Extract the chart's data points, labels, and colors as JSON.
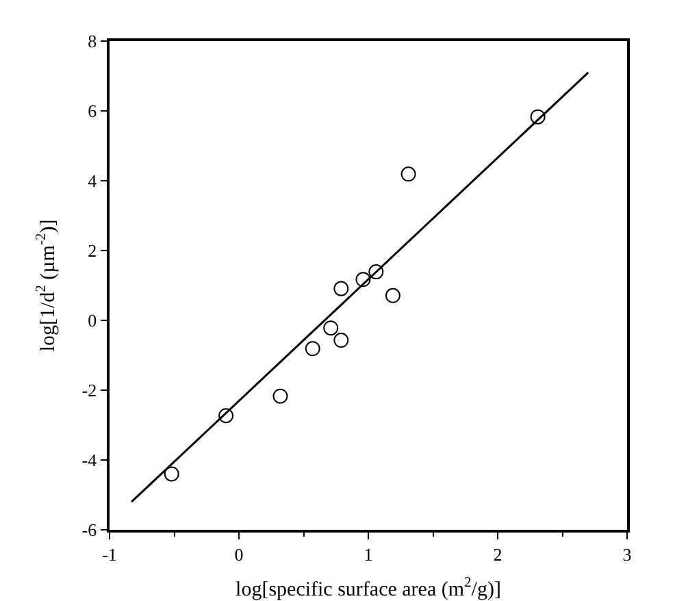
{
  "chart_data": {
    "type": "scatter",
    "xlabel": "log[specific surface area (m$^{2}$/g)]",
    "ylabel": "log[1/d$^{2}$ (µm$^{-2}$)]",
    "xlim": [
      -1,
      3
    ],
    "xticks": [
      -1,
      0,
      1,
      2,
      3
    ],
    "ylim": [
      -6,
      8
    ],
    "yticks": [
      -6,
      -4,
      -2,
      0,
      2,
      4,
      6,
      8
    ],
    "series": [
      {
        "marker": "circle",
        "color": "#000000",
        "x": [
          -0.52,
          -0.1,
          0.32,
          0.57,
          0.71,
          0.79,
          0.79,
          0.96,
          1.06,
          1.19,
          1.31,
          2.31
        ],
        "values": [
          -4.4,
          -2.73,
          -2.17,
          -0.81,
          -0.22,
          -0.57,
          0.91,
          1.17,
          1.39,
          0.71,
          4.19,
          5.83
        ]
      },
      {
        "type": "line",
        "line_style": "solid",
        "color": "#000000",
        "x": [
          -0.83,
          2.7
        ],
        "values": [
          -5.2,
          7.1
        ]
      }
    ]
  }
}
